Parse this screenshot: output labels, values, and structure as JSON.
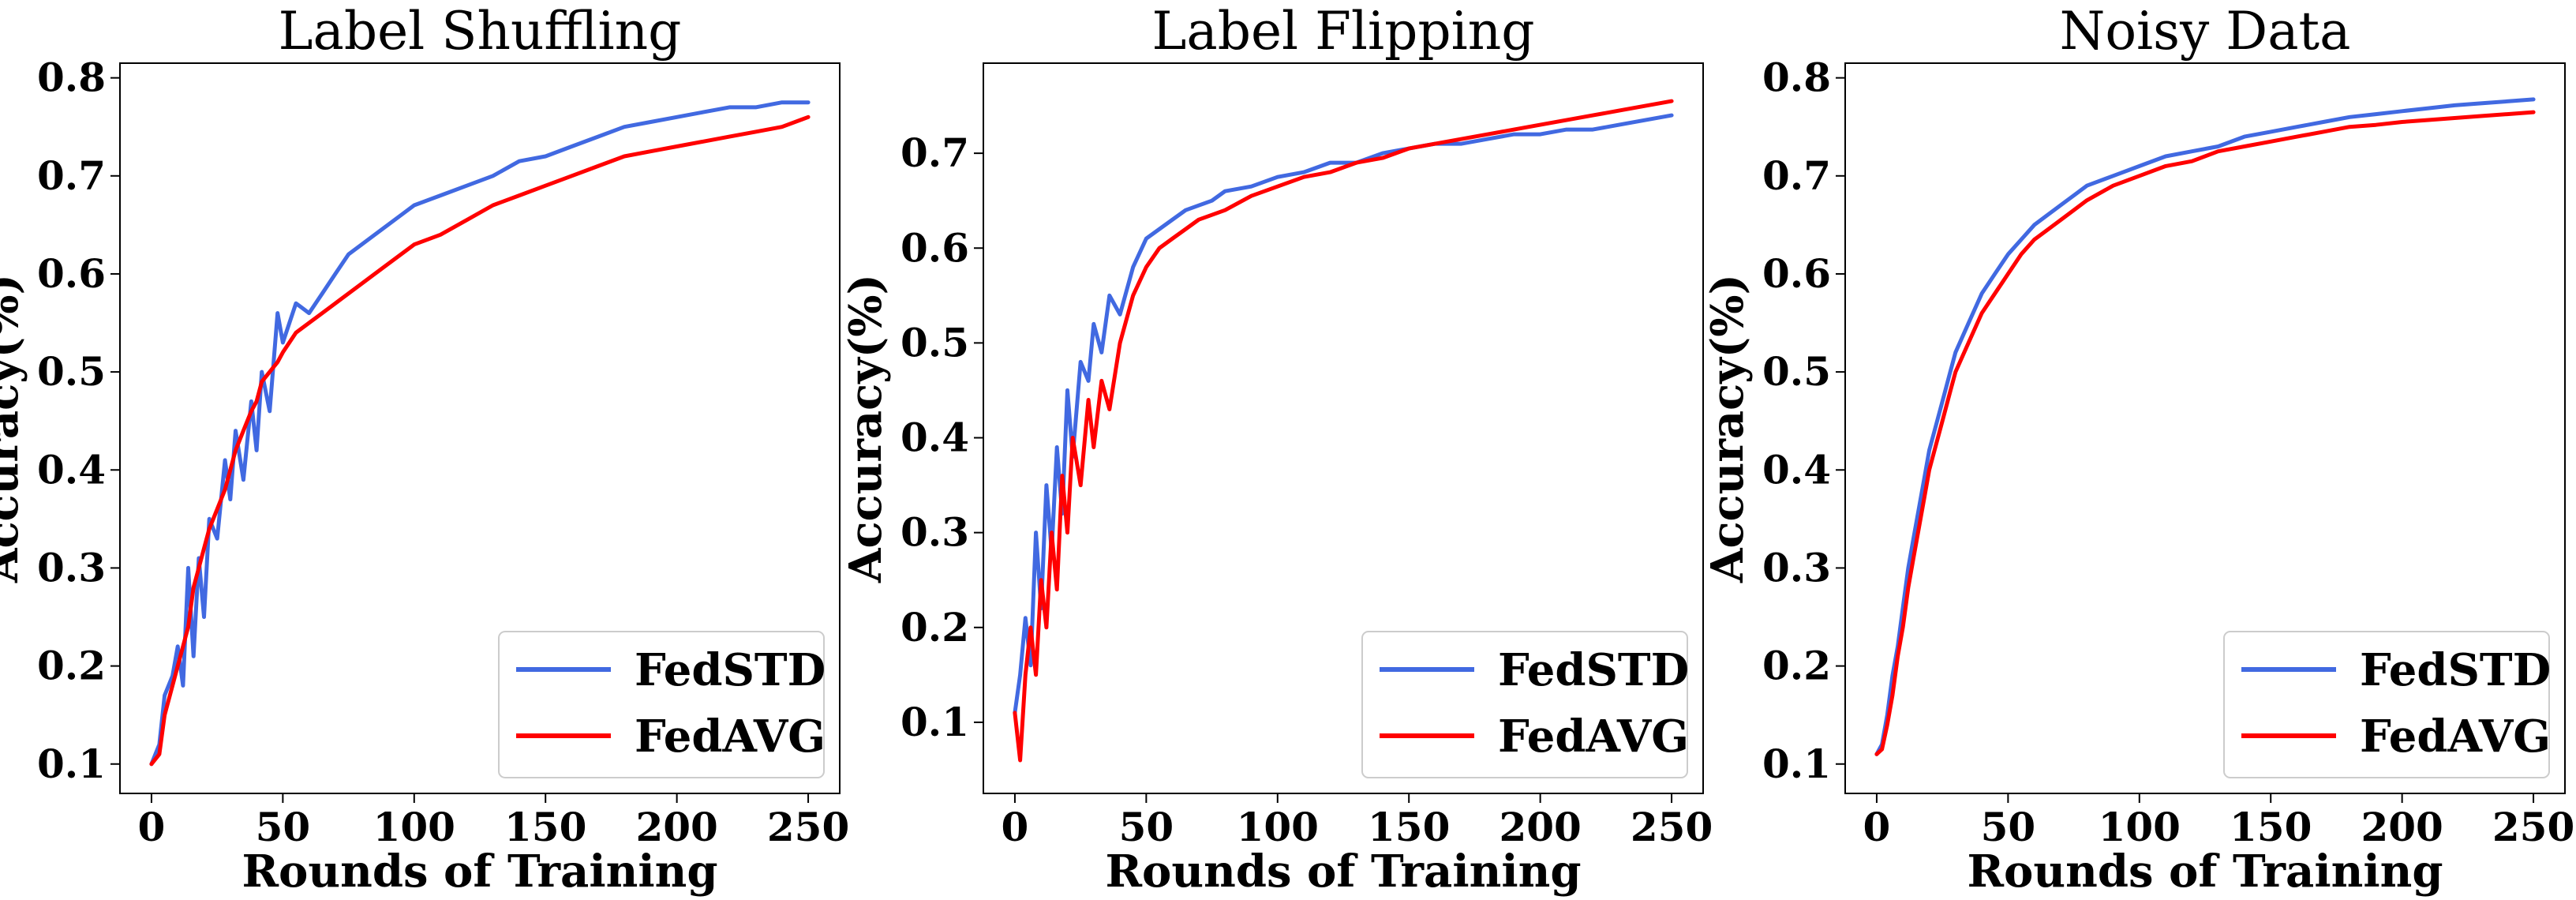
{
  "chart_data": [
    {
      "type": "line",
      "title": "Label Shuffling",
      "xlabel": "Rounds of Training",
      "ylabel": "Accuracy(%)",
      "xlim": [
        -12,
        262
      ],
      "ylim": [
        0.07,
        0.815
      ],
      "xticks": [
        0,
        50,
        100,
        150,
        200,
        250
      ],
      "yticks": [
        0.1,
        0.2,
        0.3,
        0.4,
        0.5,
        0.6,
        0.7,
        0.8
      ],
      "legend_position": "lower-right",
      "grid": false,
      "series": [
        {
          "name": "FedSTD",
          "color": "#4169e1",
          "points": [
            [
              0,
              0.1
            ],
            [
              3,
              0.12
            ],
            [
              5,
              0.17
            ],
            [
              8,
              0.19
            ],
            [
              10,
              0.22
            ],
            [
              12,
              0.18
            ],
            [
              14,
              0.3
            ],
            [
              16,
              0.21
            ],
            [
              18,
              0.31
            ],
            [
              20,
              0.25
            ],
            [
              22,
              0.35
            ],
            [
              25,
              0.33
            ],
            [
              28,
              0.41
            ],
            [
              30,
              0.37
            ],
            [
              32,
              0.44
            ],
            [
              35,
              0.39
            ],
            [
              38,
              0.47
            ],
            [
              40,
              0.42
            ],
            [
              42,
              0.5
            ],
            [
              45,
              0.46
            ],
            [
              48,
              0.56
            ],
            [
              50,
              0.53
            ],
            [
              55,
              0.57
            ],
            [
              60,
              0.56
            ],
            [
              65,
              0.58
            ],
            [
              70,
              0.6
            ],
            [
              75,
              0.62
            ],
            [
              80,
              0.63
            ],
            [
              85,
              0.64
            ],
            [
              90,
              0.65
            ],
            [
              100,
              0.67
            ],
            [
              110,
              0.68
            ],
            [
              120,
              0.69
            ],
            [
              130,
              0.7
            ],
            [
              140,
              0.715
            ],
            [
              150,
              0.72
            ],
            [
              160,
              0.73
            ],
            [
              170,
              0.74
            ],
            [
              180,
              0.75
            ],
            [
              190,
              0.755
            ],
            [
              200,
              0.76
            ],
            [
              210,
              0.765
            ],
            [
              220,
              0.77
            ],
            [
              230,
              0.77
            ],
            [
              240,
              0.775
            ],
            [
              250,
              0.775
            ]
          ]
        },
        {
          "name": "FedAVG",
          "color": "#ff0000",
          "points": [
            [
              0,
              0.1
            ],
            [
              3,
              0.11
            ],
            [
              5,
              0.15
            ],
            [
              8,
              0.18
            ],
            [
              10,
              0.2
            ],
            [
              12,
              0.22
            ],
            [
              14,
              0.24
            ],
            [
              16,
              0.28
            ],
            [
              18,
              0.3
            ],
            [
              20,
              0.32
            ],
            [
              22,
              0.34
            ],
            [
              25,
              0.36
            ],
            [
              28,
              0.38
            ],
            [
              30,
              0.4
            ],
            [
              32,
              0.42
            ],
            [
              35,
              0.44
            ],
            [
              38,
              0.46
            ],
            [
              40,
              0.47
            ],
            [
              42,
              0.49
            ],
            [
              45,
              0.5
            ],
            [
              48,
              0.51
            ],
            [
              50,
              0.52
            ],
            [
              55,
              0.54
            ],
            [
              60,
              0.55
            ],
            [
              65,
              0.56
            ],
            [
              70,
              0.57
            ],
            [
              75,
              0.58
            ],
            [
              80,
              0.59
            ],
            [
              85,
              0.6
            ],
            [
              90,
              0.61
            ],
            [
              100,
              0.63
            ],
            [
              110,
              0.64
            ],
            [
              120,
              0.655
            ],
            [
              130,
              0.67
            ],
            [
              140,
              0.68
            ],
            [
              150,
              0.69
            ],
            [
              160,
              0.7
            ],
            [
              170,
              0.71
            ],
            [
              180,
              0.72
            ],
            [
              190,
              0.725
            ],
            [
              200,
              0.73
            ],
            [
              210,
              0.735
            ],
            [
              220,
              0.74
            ],
            [
              230,
              0.745
            ],
            [
              240,
              0.75
            ],
            [
              250,
              0.76
            ]
          ]
        }
      ]
    },
    {
      "type": "line",
      "title": "Label Flipping",
      "xlabel": "Rounds of Training",
      "ylabel": "Accuracy(%)",
      "xlim": [
        -12,
        262
      ],
      "ylim": [
        0.025,
        0.795
      ],
      "xticks": [
        0,
        50,
        100,
        150,
        200,
        250
      ],
      "yticks": [
        0.1,
        0.2,
        0.3,
        0.4,
        0.5,
        0.6,
        0.7
      ],
      "legend_position": "lower-right",
      "grid": false,
      "series": [
        {
          "name": "FedSTD",
          "color": "#4169e1",
          "points": [
            [
              0,
              0.11
            ],
            [
              2,
              0.15
            ],
            [
              4,
              0.21
            ],
            [
              6,
              0.16
            ],
            [
              8,
              0.3
            ],
            [
              10,
              0.22
            ],
            [
              12,
              0.35
            ],
            [
              14,
              0.28
            ],
            [
              16,
              0.39
            ],
            [
              18,
              0.32
            ],
            [
              20,
              0.45
            ],
            [
              22,
              0.38
            ],
            [
              25,
              0.48
            ],
            [
              28,
              0.46
            ],
            [
              30,
              0.52
            ],
            [
              33,
              0.49
            ],
            [
              36,
              0.55
            ],
            [
              40,
              0.53
            ],
            [
              45,
              0.58
            ],
            [
              50,
              0.61
            ],
            [
              55,
              0.62
            ],
            [
              60,
              0.63
            ],
            [
              65,
              0.64
            ],
            [
              70,
              0.645
            ],
            [
              75,
              0.65
            ],
            [
              80,
              0.66
            ],
            [
              90,
              0.665
            ],
            [
              100,
              0.675
            ],
            [
              110,
              0.68
            ],
            [
              120,
              0.69
            ],
            [
              130,
              0.69
            ],
            [
              140,
              0.7
            ],
            [
              150,
              0.705
            ],
            [
              160,
              0.71
            ],
            [
              170,
              0.71
            ],
            [
              180,
              0.715
            ],
            [
              190,
              0.72
            ],
            [
              200,
              0.72
            ],
            [
              210,
              0.725
            ],
            [
              220,
              0.725
            ],
            [
              230,
              0.73
            ],
            [
              240,
              0.735
            ],
            [
              250,
              0.74
            ]
          ]
        },
        {
          "name": "FedAVG",
          "color": "#ff0000",
          "points": [
            [
              0,
              0.11
            ],
            [
              2,
              0.06
            ],
            [
              4,
              0.15
            ],
            [
              6,
              0.2
            ],
            [
              8,
              0.15
            ],
            [
              10,
              0.25
            ],
            [
              12,
              0.2
            ],
            [
              14,
              0.3
            ],
            [
              16,
              0.24
            ],
            [
              18,
              0.36
            ],
            [
              20,
              0.3
            ],
            [
              22,
              0.4
            ],
            [
              25,
              0.35
            ],
            [
              28,
              0.44
            ],
            [
              30,
              0.39
            ],
            [
              33,
              0.46
            ],
            [
              36,
              0.43
            ],
            [
              40,
              0.5
            ],
            [
              45,
              0.55
            ],
            [
              50,
              0.58
            ],
            [
              55,
              0.6
            ],
            [
              60,
              0.61
            ],
            [
              65,
              0.62
            ],
            [
              70,
              0.63
            ],
            [
              75,
              0.635
            ],
            [
              80,
              0.64
            ],
            [
              90,
              0.655
            ],
            [
              100,
              0.665
            ],
            [
              110,
              0.675
            ],
            [
              120,
              0.68
            ],
            [
              130,
              0.69
            ],
            [
              140,
              0.695
            ],
            [
              150,
              0.705
            ],
            [
              160,
              0.71
            ],
            [
              170,
              0.715
            ],
            [
              180,
              0.72
            ],
            [
              190,
              0.725
            ],
            [
              200,
              0.73
            ],
            [
              210,
              0.735
            ],
            [
              220,
              0.74
            ],
            [
              230,
              0.745
            ],
            [
              240,
              0.75
            ],
            [
              250,
              0.755
            ]
          ]
        }
      ]
    },
    {
      "type": "line",
      "title": "Noisy Data",
      "xlabel": "Rounds of Training",
      "ylabel": "Accuracy(%)",
      "xlim": [
        -12,
        262
      ],
      "ylim": [
        0.07,
        0.815
      ],
      "xticks": [
        0,
        50,
        100,
        150,
        200,
        250
      ],
      "yticks": [
        0.1,
        0.2,
        0.3,
        0.4,
        0.5,
        0.6,
        0.7,
        0.8
      ],
      "legend_position": "lower-right",
      "grid": false,
      "series": [
        {
          "name": "FedSTD",
          "color": "#4169e1",
          "points": [
            [
              0,
              0.11
            ],
            [
              2,
              0.12
            ],
            [
              4,
              0.15
            ],
            [
              6,
              0.19
            ],
            [
              8,
              0.22
            ],
            [
              10,
              0.26
            ],
            [
              12,
              0.3
            ],
            [
              14,
              0.33
            ],
            [
              16,
              0.36
            ],
            [
              18,
              0.39
            ],
            [
              20,
              0.42
            ],
            [
              22,
              0.44
            ],
            [
              25,
              0.47
            ],
            [
              28,
              0.5
            ],
            [
              30,
              0.52
            ],
            [
              35,
              0.55
            ],
            [
              40,
              0.58
            ],
            [
              45,
              0.6
            ],
            [
              50,
              0.62
            ],
            [
              55,
              0.635
            ],
            [
              60,
              0.65
            ],
            [
              65,
              0.66
            ],
            [
              70,
              0.67
            ],
            [
              75,
              0.68
            ],
            [
              80,
              0.69
            ],
            [
              90,
              0.7
            ],
            [
              100,
              0.71
            ],
            [
              110,
              0.72
            ],
            [
              120,
              0.725
            ],
            [
              130,
              0.73
            ],
            [
              140,
              0.74
            ],
            [
              150,
              0.745
            ],
            [
              160,
              0.75
            ],
            [
              170,
              0.755
            ],
            [
              180,
              0.76
            ],
            [
              190,
              0.763
            ],
            [
              200,
              0.766
            ],
            [
              210,
              0.769
            ],
            [
              220,
              0.772
            ],
            [
              230,
              0.774
            ],
            [
              240,
              0.776
            ],
            [
              250,
              0.778
            ]
          ]
        },
        {
          "name": "FedAVG",
          "color": "#ff0000",
          "points": [
            [
              0,
              0.11
            ],
            [
              2,
              0.115
            ],
            [
              4,
              0.14
            ],
            [
              6,
              0.17
            ],
            [
              8,
              0.21
            ],
            [
              10,
              0.24
            ],
            [
              12,
              0.28
            ],
            [
              14,
              0.31
            ],
            [
              16,
              0.34
            ],
            [
              18,
              0.37
            ],
            [
              20,
              0.4
            ],
            [
              22,
              0.42
            ],
            [
              25,
              0.45
            ],
            [
              28,
              0.48
            ],
            [
              30,
              0.5
            ],
            [
              35,
              0.53
            ],
            [
              40,
              0.56
            ],
            [
              45,
              0.58
            ],
            [
              50,
              0.6
            ],
            [
              55,
              0.62
            ],
            [
              60,
              0.635
            ],
            [
              65,
              0.645
            ],
            [
              70,
              0.655
            ],
            [
              75,
              0.665
            ],
            [
              80,
              0.675
            ],
            [
              90,
              0.69
            ],
            [
              100,
              0.7
            ],
            [
              110,
              0.71
            ],
            [
              120,
              0.715
            ],
            [
              130,
              0.725
            ],
            [
              140,
              0.73
            ],
            [
              150,
              0.735
            ],
            [
              160,
              0.74
            ],
            [
              170,
              0.745
            ],
            [
              180,
              0.75
            ],
            [
              190,
              0.752
            ],
            [
              200,
              0.755
            ],
            [
              210,
              0.757
            ],
            [
              220,
              0.759
            ],
            [
              230,
              0.761
            ],
            [
              240,
              0.763
            ],
            [
              250,
              0.765
            ]
          ]
        }
      ]
    }
  ]
}
